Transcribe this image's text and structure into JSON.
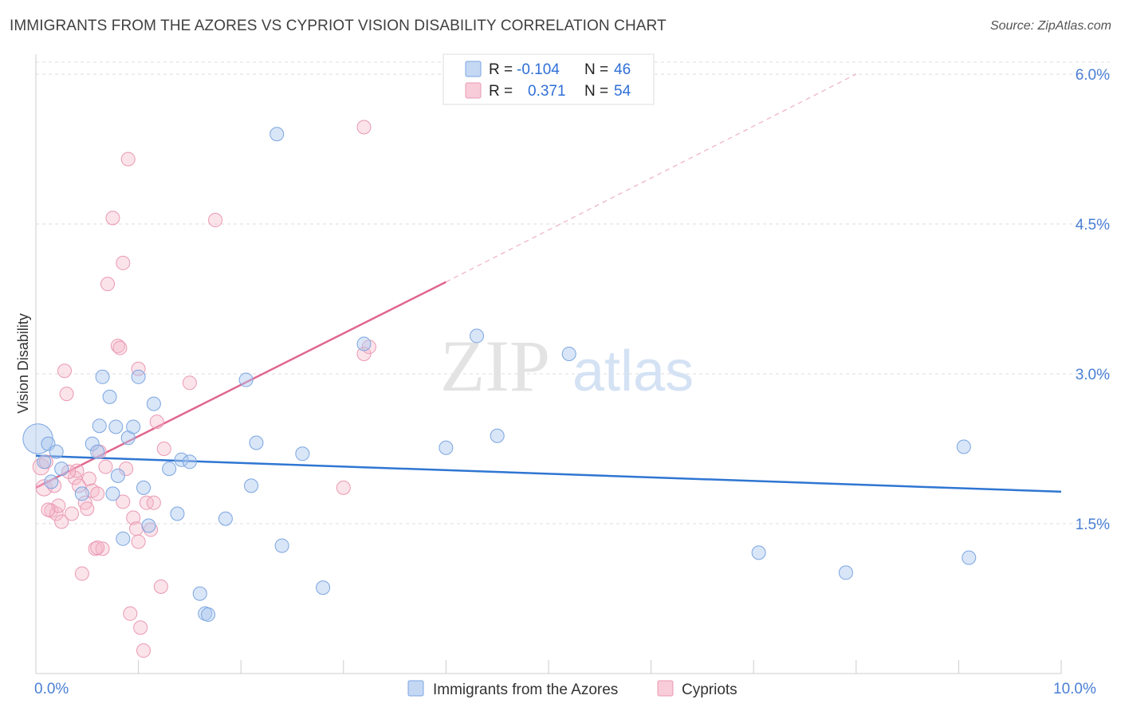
{
  "title": "IMMIGRANTS FROM THE AZORES VS CYPRIOT VISION DISABILITY CORRELATION CHART",
  "source": "Source: ZipAtlas.com",
  "colors": {
    "azores_fill": "#aac8f0",
    "azores_line": "#2f76d2",
    "cypriot_fill": "#f5b8cb",
    "cypriot_line": "#e0668e",
    "tick_text": "#4a7fd4",
    "grid": "#dddddd"
  },
  "legend": {
    "rows": [
      {
        "r_label": "R =",
        "r_value": "-0.104",
        "n_label": "N =",
        "n_value": "46"
      },
      {
        "r_label": "R =",
        "r_value": "0.371",
        "n_label": "N =",
        "n_value": "54"
      }
    ]
  },
  "watermark": {
    "part1": "ZIP",
    "part2": "atlas"
  },
  "chart_data": {
    "type": "scatter",
    "title": "IMMIGRANTS FROM THE AZORES VS CYPRIOT VISION DISABILITY CORRELATION CHART",
    "xlabel": "",
    "ylabel": "Vision Disability",
    "xlim": [
      0,
      10
    ],
    "ylim": [
      0,
      6.2
    ],
    "x_tick_labels": [
      "0.0%",
      "10.0%"
    ],
    "y_ticks": [
      1.5,
      3.0,
      4.5,
      6.0
    ],
    "y_tick_labels": [
      "1.5%",
      "3.0%",
      "4.5%",
      "6.0%"
    ],
    "grid": true,
    "legend_position": "bottom",
    "series": [
      {
        "name": "Immigrants from the Azores",
        "r": -0.104,
        "n": 46,
        "trend": {
          "x0": 0.0,
          "y0": 2.18,
          "x1": 10.0,
          "y1": 1.82
        },
        "points": [
          [
            0.02,
            2.35,
            22
          ],
          [
            0.08,
            2.12,
            10
          ],
          [
            0.12,
            2.3,
            10
          ],
          [
            0.2,
            2.22,
            10
          ],
          [
            0.25,
            2.05,
            10
          ],
          [
            0.15,
            1.92,
            10
          ],
          [
            0.45,
            1.8,
            10
          ],
          [
            0.55,
            2.3,
            10
          ],
          [
            0.62,
            2.48,
            10
          ],
          [
            0.6,
            2.22,
            10
          ],
          [
            0.65,
            2.97,
            10
          ],
          [
            0.72,
            2.77,
            10
          ],
          [
            0.75,
            1.8,
            10
          ],
          [
            0.78,
            2.47,
            10
          ],
          [
            0.8,
            1.98,
            10
          ],
          [
            0.85,
            1.35,
            10
          ],
          [
            0.9,
            2.36,
            10
          ],
          [
            0.95,
            2.47,
            10
          ],
          [
            1.0,
            2.97,
            10
          ],
          [
            1.05,
            1.86,
            10
          ],
          [
            1.1,
            1.48,
            10
          ],
          [
            1.15,
            2.7,
            10
          ],
          [
            1.3,
            2.05,
            10
          ],
          [
            1.38,
            1.6,
            10
          ],
          [
            1.42,
            2.14,
            10
          ],
          [
            1.5,
            2.12,
            10
          ],
          [
            1.6,
            0.8,
            10
          ],
          [
            1.65,
            0.6,
            10
          ],
          [
            1.68,
            0.59,
            10
          ],
          [
            1.85,
            1.55,
            10
          ],
          [
            2.05,
            2.94,
            10
          ],
          [
            2.1,
            1.88,
            10
          ],
          [
            2.15,
            2.31,
            10
          ],
          [
            2.35,
            5.4,
            10
          ],
          [
            2.4,
            1.28,
            10
          ],
          [
            2.6,
            2.2,
            10
          ],
          [
            2.8,
            0.86,
            10
          ],
          [
            3.2,
            3.3,
            10
          ],
          [
            4.0,
            2.26,
            10
          ],
          [
            4.3,
            3.38,
            10
          ],
          [
            4.5,
            2.38,
            10
          ],
          [
            5.2,
            3.2,
            10
          ],
          [
            7.05,
            1.21,
            10
          ],
          [
            7.9,
            1.01,
            10
          ],
          [
            9.05,
            2.27,
            10
          ],
          [
            9.1,
            1.16,
            10
          ]
        ]
      },
      {
        "name": "Cypriots",
        "r": 0.371,
        "n": 54,
        "trend": {
          "x0": 0.0,
          "y0": 1.86,
          "x1": 4.0,
          "y1": 3.92,
          "dashed_to": [
            8.0,
            6.0
          ]
        },
        "points": [
          [
            0.05,
            2.07,
            12
          ],
          [
            0.08,
            1.86,
            12
          ],
          [
            0.1,
            2.12,
            10
          ],
          [
            0.15,
            1.63,
            10
          ],
          [
            0.18,
            1.88,
            10
          ],
          [
            0.2,
            1.6,
            10
          ],
          [
            0.22,
            1.68,
            10
          ],
          [
            0.25,
            1.52,
            10
          ],
          [
            0.28,
            3.03,
            10
          ],
          [
            0.3,
            2.8,
            10
          ],
          [
            0.35,
            1.6,
            10
          ],
          [
            0.38,
            1.96,
            10
          ],
          [
            0.4,
            2.03,
            10
          ],
          [
            0.42,
            1.88,
            10
          ],
          [
            0.45,
            1.0,
            10
          ],
          [
            0.48,
            1.71,
            10
          ],
          [
            0.5,
            1.65,
            10
          ],
          [
            0.52,
            1.95,
            10
          ],
          [
            0.55,
            1.83,
            10
          ],
          [
            0.58,
            1.25,
            10
          ],
          [
            0.6,
            1.8,
            10
          ],
          [
            0.62,
            2.22,
            10
          ],
          [
            0.65,
            1.25,
            10
          ],
          [
            0.68,
            2.07,
            10
          ],
          [
            0.7,
            3.9,
            10
          ],
          [
            0.75,
            4.56,
            10
          ],
          [
            0.8,
            3.28,
            10
          ],
          [
            0.82,
            3.26,
            10
          ],
          [
            0.85,
            4.11,
            10
          ],
          [
            0.88,
            2.05,
            10
          ],
          [
            0.9,
            5.15,
            10
          ],
          [
            0.92,
            0.6,
            10
          ],
          [
            0.95,
            1.56,
            10
          ],
          [
            0.98,
            1.45,
            10
          ],
          [
            1.0,
            3.05,
            10
          ],
          [
            1.02,
            0.46,
            10
          ],
          [
            1.05,
            0.23,
            10
          ],
          [
            1.08,
            1.71,
            10
          ],
          [
            1.12,
            1.44,
            10
          ],
          [
            1.15,
            1.71,
            10
          ],
          [
            1.18,
            2.52,
            10
          ],
          [
            1.22,
            0.87,
            10
          ],
          [
            1.25,
            2.25,
            10
          ],
          [
            1.5,
            2.91,
            10
          ],
          [
            1.75,
            4.54,
            10
          ],
          [
            3.0,
            1.86,
            10
          ],
          [
            3.2,
            3.2,
            10
          ],
          [
            3.25,
            3.27,
            10
          ],
          [
            3.2,
            5.47,
            10
          ],
          [
            0.12,
            1.64,
            10
          ],
          [
            0.32,
            2.02,
            10
          ],
          [
            0.6,
            1.26,
            10
          ],
          [
            0.85,
            1.72,
            10
          ],
          [
            1.0,
            1.32,
            10
          ]
        ]
      }
    ]
  },
  "bottom_legend": [
    {
      "label": "Immigrants from the Azores"
    },
    {
      "label": "Cypriots"
    }
  ]
}
